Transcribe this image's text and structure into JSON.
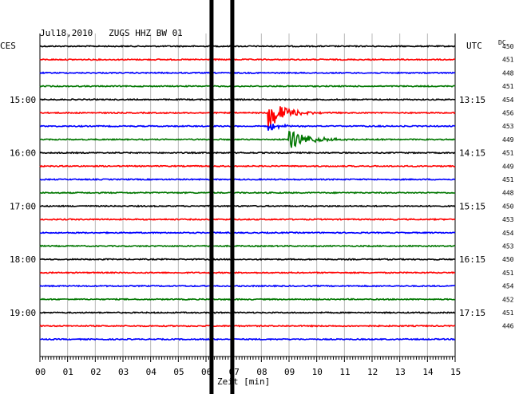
{
  "header": {
    "title": "Jul18,2010   ZUGS HHZ BW 01",
    "left_label": "CES",
    "right_label": "UTC",
    "dc_label": "DC"
  },
  "chart_data": {
    "type": "line",
    "title": "Jul18,2010   ZUGS HHZ BW 01",
    "xlabel": "Zeit [min]",
    "xlim": [
      0,
      15
    ],
    "x_ticks": [
      "00",
      "01",
      "02",
      "03",
      "04",
      "05",
      "06",
      "07",
      "08",
      "09",
      "10",
      "11",
      "12",
      "13",
      "14",
      "15"
    ],
    "trace_count": 23,
    "trace_colors": [
      "#000000",
      "#ff0000",
      "#0000ff",
      "#007700"
    ],
    "left_time_labels": [
      {
        "trace": 4,
        "label": "15:00"
      },
      {
        "trace": 8,
        "label": "16:00"
      },
      {
        "trace": 12,
        "label": "17:00"
      },
      {
        "trace": 16,
        "label": "18:00"
      },
      {
        "trace": 20,
        "label": "19:00"
      }
    ],
    "right_time_labels": [
      {
        "trace": 4,
        "label": "13:15"
      },
      {
        "trace": 8,
        "label": "14:15"
      },
      {
        "trace": 12,
        "label": "15:15"
      },
      {
        "trace": 16,
        "label": "16:15"
      },
      {
        "trace": 20,
        "label": "17:15"
      }
    ],
    "dc_values": [
      "450",
      "451",
      "448",
      "451",
      "454",
      "456",
      "453",
      "449",
      "451",
      "449",
      "451",
      "448",
      "450",
      "453",
      "454",
      "453",
      "450",
      "451",
      "454",
      "452",
      "451",
      "446"
    ],
    "events": [
      {
        "trace": 5,
        "start_min": 8.2,
        "amplitude": 1.35,
        "decay": 0.55,
        "color": "#ff0000"
      },
      {
        "trace": 6,
        "start_min": 8.25,
        "amplitude": 0.35,
        "decay": 0.4,
        "color": "#0000ff"
      },
      {
        "trace": 7,
        "start_min": 9.0,
        "amplitude": 0.75,
        "decay": 0.7,
        "color": "#007700"
      }
    ],
    "vertical_bars_min": [
      6.2,
      6.95
    ],
    "grid": true
  }
}
